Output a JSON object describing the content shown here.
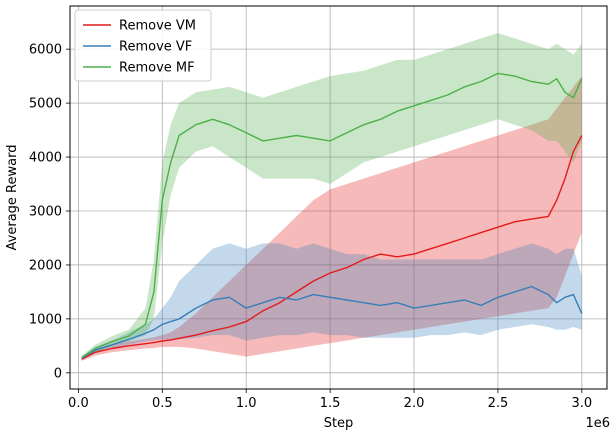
{
  "chart_data": {
    "type": "line",
    "xlabel": "Step",
    "ylabel": "Average Reward",
    "x_offset_label": "1e6",
    "xlim": [
      -0.05,
      3.15
    ],
    "ylim": [
      -300,
      6800
    ],
    "xticks": [
      0.0,
      0.5,
      1.0,
      1.5,
      2.0,
      2.5,
      3.0
    ],
    "xtick_labels": [
      "0.0",
      "0.5",
      "1.0",
      "1.5",
      "2.0",
      "2.5",
      "3.0"
    ],
    "yticks": [
      0,
      1000,
      2000,
      3000,
      4000,
      5000,
      6000
    ],
    "ytick_labels": [
      "0",
      "1000",
      "2000",
      "3000",
      "4000",
      "5000",
      "6000"
    ],
    "grid": true,
    "legend": "top-left",
    "x": [
      0.02,
      0.1,
      0.2,
      0.3,
      0.4,
      0.45,
      0.5,
      0.55,
      0.6,
      0.7,
      0.8,
      0.9,
      1.0,
      1.1,
      1.2,
      1.3,
      1.4,
      1.5,
      1.6,
      1.7,
      1.8,
      1.9,
      2.0,
      2.1,
      2.2,
      2.3,
      2.4,
      2.5,
      2.6,
      2.7,
      2.8,
      2.85,
      2.9,
      2.95,
      3.0
    ],
    "series": [
      {
        "name": "Remove VM",
        "color": "#e41a1c",
        "values": [
          250,
          380,
          450,
          500,
          540,
          560,
          590,
          610,
          640,
          700,
          780,
          850,
          950,
          1150,
          1300,
          1500,
          1700,
          1850,
          1950,
          2100,
          2200,
          2150,
          2200,
          2300,
          2400,
          2500,
          2600,
          2700,
          2800,
          2850,
          2900,
          3200,
          3600,
          4100,
          4400
        ],
        "lower": [
          220,
          320,
          380,
          420,
          450,
          460,
          480,
          480,
          480,
          450,
          400,
          350,
          300,
          350,
          400,
          450,
          500,
          550,
          600,
          650,
          700,
          750,
          800,
          850,
          900,
          950,
          1000,
          1050,
          1100,
          1150,
          1200,
          1400,
          1800,
          2200,
          2600
        ],
        "upper": [
          290,
          440,
          520,
          580,
          630,
          660,
          700,
          750,
          850,
          1100,
          1400,
          1700,
          2000,
          2300,
          2600,
          2900,
          3200,
          3400,
          3500,
          3600,
          3700,
          3800,
          3900,
          4000,
          4100,
          4200,
          4300,
          4400,
          4500,
          4600,
          4700,
          4900,
          5100,
          5300,
          5500
        ]
      },
      {
        "name": "Remove VF",
        "color": "#377eb8",
        "values": [
          270,
          420,
          520,
          620,
          730,
          800,
          900,
          950,
          1000,
          1200,
          1350,
          1400,
          1200,
          1300,
          1400,
          1350,
          1450,
          1400,
          1350,
          1300,
          1250,
          1300,
          1200,
          1250,
          1300,
          1350,
          1250,
          1400,
          1500,
          1600,
          1450,
          1300,
          1400,
          1450,
          1100
        ],
        "lower": [
          240,
          360,
          450,
          520,
          580,
          600,
          620,
          620,
          620,
          650,
          700,
          700,
          600,
          650,
          700,
          700,
          750,
          700,
          700,
          650,
          650,
          650,
          650,
          700,
          700,
          750,
          700,
          800,
          850,
          900,
          850,
          800,
          800,
          850,
          800
        ],
        "upper": [
          300,
          480,
          600,
          750,
          900,
          1000,
          1200,
          1400,
          1700,
          2000,
          2300,
          2400,
          2300,
          2400,
          2400,
          2300,
          2400,
          2300,
          2200,
          2200,
          2100,
          2100,
          2100,
          2100,
          2100,
          2100,
          2100,
          2200,
          2300,
          2400,
          2300,
          2200,
          2300,
          2300,
          1800
        ]
      },
      {
        "name": "Remove MF",
        "color": "#4daf4a",
        "values": [
          280,
          450,
          580,
          680,
          900,
          1500,
          3200,
          3900,
          4400,
          4600,
          4700,
          4600,
          4450,
          4300,
          4350,
          4400,
          4350,
          4300,
          4450,
          4600,
          4700,
          4850,
          4950,
          5050,
          5150,
          5300,
          5400,
          5550,
          5500,
          5400,
          5350,
          5450,
          5200,
          5100,
          5450
        ],
        "lower": [
          250,
          380,
          500,
          580,
          700,
          1000,
          2400,
          3300,
          3800,
          4100,
          4200,
          4000,
          3800,
          3600,
          3600,
          3600,
          3600,
          3500,
          3700,
          3900,
          4000,
          4100,
          4200,
          4300,
          4400,
          4500,
          4600,
          4700,
          4600,
          4500,
          4300,
          4300,
          4100,
          3900,
          4300
        ],
        "upper": [
          320,
          520,
          680,
          800,
          1200,
          2100,
          3900,
          4600,
          5000,
          5200,
          5250,
          5300,
          5200,
          5100,
          5200,
          5300,
          5400,
          5500,
          5550,
          5600,
          5700,
          5800,
          5800,
          5900,
          6000,
          6100,
          6200,
          6300,
          6200,
          6100,
          6000,
          6100,
          6000,
          5900,
          6100
        ]
      }
    ]
  }
}
